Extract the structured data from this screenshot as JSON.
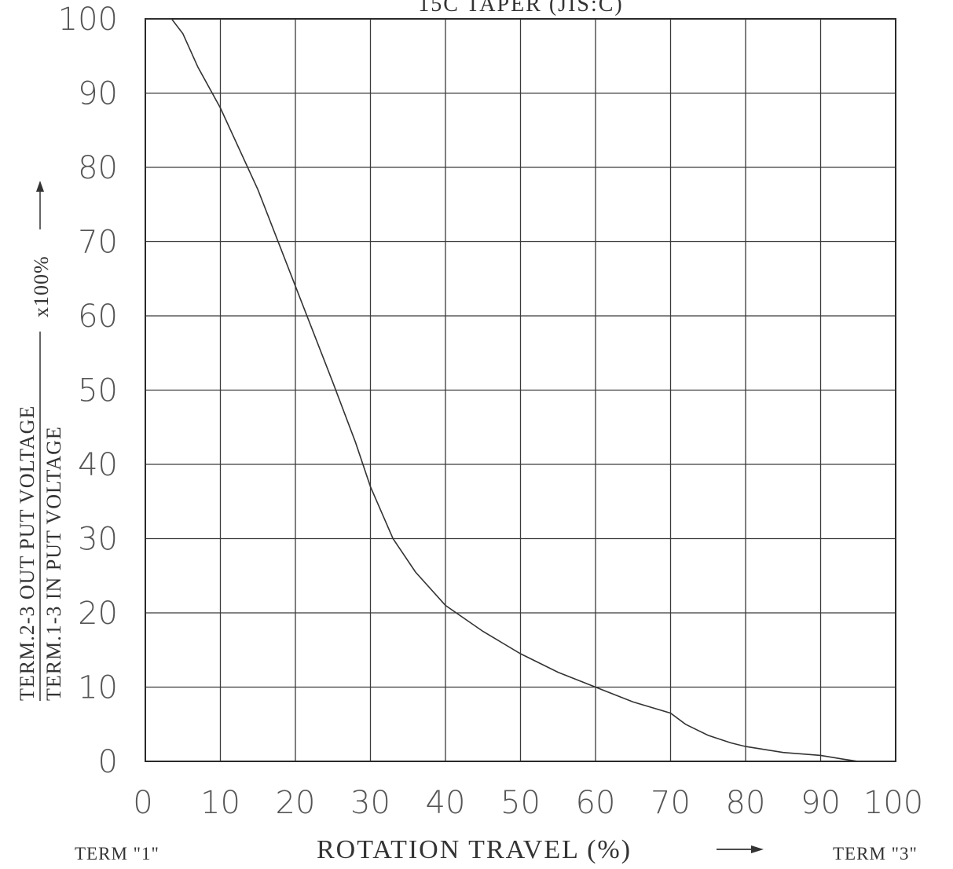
{
  "chart_data": {
    "type": "line",
    "title": "15C TAPER (JIS:C)",
    "xlabel": "ROTATION TRAVEL (%)",
    "ylabel_numerator": "TERM.2-3 OUT PUT VOLTAGE",
    "ylabel_denominator": "TERM.1-3 IN PUT VOLTAGE",
    "ylabel_multiplier": "x100%",
    "term_left": "TERM \"1\"",
    "term_right": "TERM \"3\"",
    "xlim": [
      0,
      100
    ],
    "ylim": [
      0,
      100
    ],
    "x_ticks": [
      "0",
      "10",
      "20",
      "30",
      "40",
      "50",
      "60",
      "70",
      "80",
      "90",
      "100"
    ],
    "y_ticks": [
      "0",
      "10",
      "20",
      "30",
      "40",
      "50",
      "60",
      "70",
      "80",
      "90",
      "100"
    ],
    "grid": true,
    "series": [
      {
        "x": [
          0,
          3.5,
          5,
          7,
          10,
          15,
          20,
          25,
          28,
          30,
          33,
          36,
          40,
          45,
          50,
          55,
          60,
          65,
          70,
          72,
          75,
          78,
          80,
          85,
          90,
          93,
          95,
          100
        ],
        "y": [
          100,
          100,
          98,
          93.5,
          88,
          77,
          64,
          51,
          43,
          37,
          30,
          25.5,
          21,
          17.5,
          14.5,
          12,
          10,
          8,
          6.5,
          5,
          3.5,
          2.5,
          2,
          1.2,
          0.8,
          0.3,
          0,
          0
        ]
      }
    ]
  }
}
